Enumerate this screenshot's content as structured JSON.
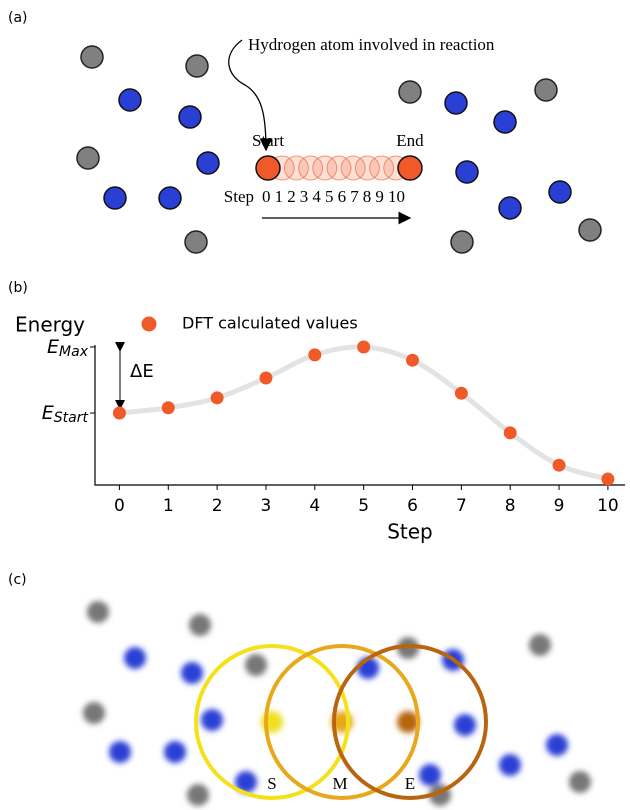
{
  "panel_a": {
    "label": "(a)",
    "annotation": "Hydrogen atom involved in reaction",
    "start": "Start",
    "end": "End",
    "step_label": "Step",
    "steps": [
      "0",
      "1",
      "2",
      "3",
      "4",
      "5",
      "6",
      "7",
      "8",
      "9",
      "10"
    ]
  },
  "panel_b": {
    "label": "(b)"
  },
  "chart_data": {
    "type": "line",
    "y_label": "Energy",
    "x_label": "Step",
    "x": [
      0,
      1,
      2,
      3,
      4,
      5,
      6,
      7,
      8,
      9,
      10
    ],
    "series": [
      {
        "name": "DFT calculated values",
        "color": "#f05a28",
        "values": [
          0,
          0.08,
          0.23,
          0.53,
          0.88,
          1.0,
          0.8,
          0.3,
          -0.3,
          -0.79,
          -1.0
        ]
      }
    ],
    "xlim": [
      -0.5,
      10.35
    ],
    "xticks": [
      0,
      1,
      2,
      3,
      4,
      5,
      6,
      7,
      8,
      9,
      10
    ],
    "ylim": [
      -1.09,
      1.03
    ],
    "yticks": [
      {
        "value": 0,
        "label": "E_Start"
      },
      {
        "value": 1,
        "label": "E_Max"
      }
    ],
    "annotation": "ΔE",
    "curve_color": "#e3e3e3"
  },
  "panel_c": {
    "label": "(c)",
    "circles": [
      "S",
      "M",
      "E"
    ]
  }
}
